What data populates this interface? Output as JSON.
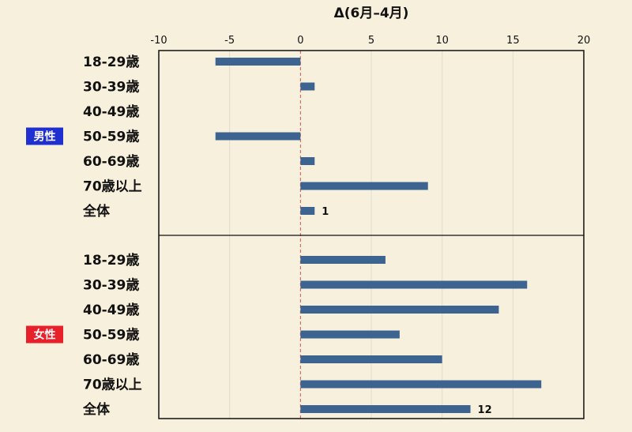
{
  "chart_data": {
    "type": "bar",
    "orientation": "horizontal",
    "title": "Δ(6月–4月)",
    "xlim": [
      -10,
      20
    ],
    "xticks": [
      -10,
      -5,
      0,
      5,
      10,
      15,
      20
    ],
    "grid": "vertical",
    "bar_color": "#3d6490",
    "groups": [
      {
        "name": "男性",
        "color": "#1f2fd0",
        "categories": [
          "18-29歳",
          "30-39歳",
          "40-49歳",
          "50-59歳",
          "60-69歳",
          "70歳以上",
          "全体"
        ],
        "values": [
          -6,
          1,
          0,
          -6,
          1,
          9,
          1
        ],
        "data_labels": [
          "",
          "",
          "",
          "",
          "",
          "",
          "1"
        ]
      },
      {
        "name": "女性",
        "color": "#e8202a",
        "categories": [
          "18-29歳",
          "30-39歳",
          "40-49歳",
          "50-59歳",
          "60-69歳",
          "70歳以上",
          "全体"
        ],
        "values": [
          6,
          16,
          14,
          7,
          10,
          17,
          12
        ],
        "data_labels": [
          "",
          "",
          "",
          "",
          "",
          "",
          "12"
        ]
      }
    ]
  }
}
